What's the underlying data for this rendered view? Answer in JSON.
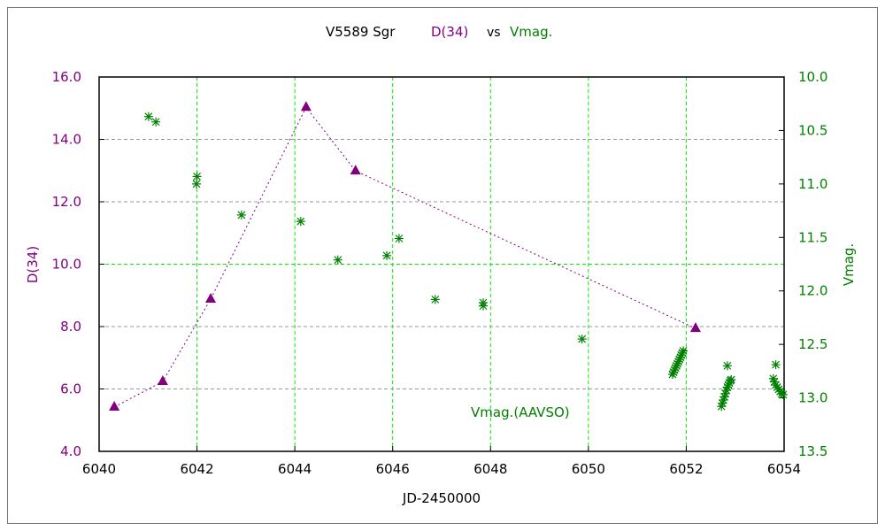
{
  "chart_data": {
    "type": "scatter",
    "title_parts": {
      "star": "V5589 Sgr",
      "series1": "D(34)",
      "vs": "vs",
      "series2": "Vmag."
    },
    "xlabel": "JD-2450000",
    "ylabel_left": "D(34)",
    "ylabel_right": "Vmag.",
    "annotation": "Vmag.(AAVSO)",
    "xlim": [
      6040,
      6054
    ],
    "ylim_left": [
      4.0,
      16.0
    ],
    "ylim_right": [
      13.5,
      10.0
    ],
    "x_ticks": [
      "6040",
      "6042",
      "6044",
      "6046",
      "6048",
      "6050",
      "6052",
      "6054"
    ],
    "y_left_ticks": [
      "4.0",
      "6.0",
      "8.0",
      "10.0",
      "12.0",
      "14.0",
      "16.0"
    ],
    "y_right_ticks": [
      "10.0",
      "10.5",
      "11.0",
      "11.5",
      "12.0",
      "12.5",
      "13.0",
      "13.5"
    ],
    "grid": true,
    "colors": {
      "d34": "#800080",
      "vmag": "#008000",
      "grid": "#00ee00",
      "grid_minor": "#999999"
    },
    "series": [
      {
        "name": "D(34)",
        "axis": "left",
        "marker": "triangle",
        "line": "dotted",
        "x": [
          6040.31,
          6041.3,
          6042.28,
          6044.23,
          6045.24,
          6052.19
        ],
        "y": [
          5.42,
          6.24,
          8.88,
          15.03,
          12.99,
          7.94
        ]
      },
      {
        "name": "Vmag.(AAVSO)",
        "axis": "right",
        "marker": "asterisk",
        "x": [
          6041.01,
          6041.16,
          6042.0,
          6041.99,
          6042.91,
          6044.12,
          6044.88,
          6045.88,
          6046.13,
          6046.87,
          6047.85,
          6047.85,
          6049.87,
          6051.72,
          6051.74,
          6051.76,
          6051.78,
          6051.8,
          6051.82,
          6051.84,
          6051.86,
          6051.88,
          6051.9,
          6051.92,
          6051.94,
          6052.84,
          6052.72,
          6052.74,
          6052.76,
          6052.78,
          6052.8,
          6052.82,
          6052.84,
          6052.86,
          6052.88,
          6052.9,
          6052.92,
          6053.83,
          6053.78,
          6053.8,
          6053.83,
          6053.86,
          6053.89,
          6053.92,
          6053.95,
          6053.98
        ],
        "y": [
          10.37,
          10.42,
          10.93,
          11.0,
          11.29,
          11.35,
          11.71,
          11.67,
          11.51,
          12.08,
          12.11,
          12.14,
          12.45,
          12.78,
          12.76,
          12.74,
          12.72,
          12.7,
          12.68,
          12.66,
          12.64,
          12.62,
          12.6,
          12.58,
          12.56,
          12.7,
          13.08,
          13.05,
          13.02,
          12.99,
          12.96,
          12.93,
          12.9,
          12.88,
          12.86,
          12.84,
          12.83,
          12.69,
          12.82,
          12.85,
          12.88,
          12.9,
          12.92,
          12.94,
          12.96,
          12.97
        ]
      }
    ]
  }
}
